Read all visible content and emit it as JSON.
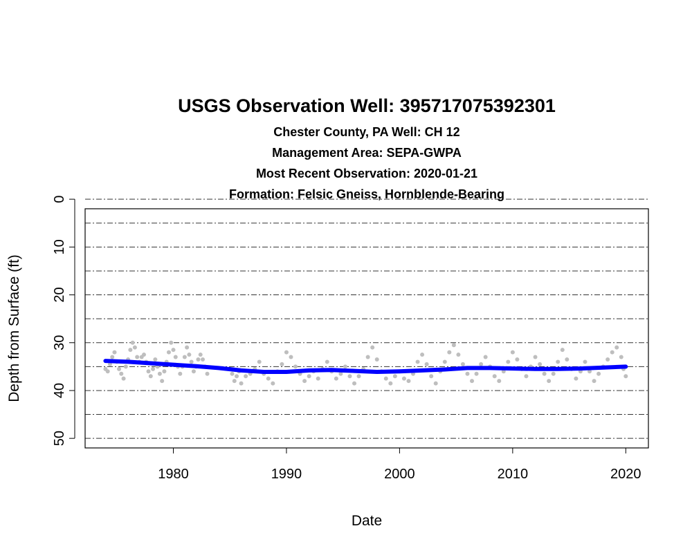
{
  "chart_data": {
    "type": "scatter",
    "title": "USGS Observation Well:  395717075392301",
    "subtitles": [
      "Chester County, PA   Well: CH 12",
      "Management Area: SEPA-GWPA",
      "Most Recent Observation: 2020-01-21",
      "Formation: Felsic Gneiss, Hornblende-Bearing"
    ],
    "xlabel": "Date",
    "ylabel": "Depth from Surface (ft)",
    "xlim": [
      1972.2,
      2022.0
    ],
    "ylim": [
      2,
      52
    ],
    "y_reversed": true,
    "x_ticks": [
      1980,
      1990,
      2000,
      2010,
      2020
    ],
    "y_ticks": [
      0,
      10,
      20,
      30,
      40,
      50
    ],
    "grid": {
      "y_lines": [
        0,
        5,
        10,
        15,
        20,
        25,
        30,
        35,
        40,
        45,
        50
      ],
      "style": "dashdot",
      "color": "#333333"
    },
    "series": [
      {
        "kind": "points",
        "color": "#bebebe",
        "points": [
          [
            1974.0,
            35.5
          ],
          [
            1974.2,
            36.0
          ],
          [
            1974.4,
            34.5
          ],
          [
            1974.6,
            33.0
          ],
          [
            1974.8,
            32.0
          ],
          [
            1975.0,
            34.0
          ],
          [
            1975.2,
            35.5
          ],
          [
            1975.4,
            36.5
          ],
          [
            1975.6,
            37.5
          ],
          [
            1975.8,
            35.0
          ],
          [
            1976.0,
            33.5
          ],
          [
            1976.2,
            31.5
          ],
          [
            1976.4,
            30.0
          ],
          [
            1976.6,
            31.0
          ],
          [
            1976.8,
            33.0
          ],
          [
            1977.0,
            34.0
          ],
          [
            1977.2,
            33.0
          ],
          [
            1977.4,
            32.5
          ],
          [
            1977.6,
            34.0
          ],
          [
            1977.8,
            36.0
          ],
          [
            1978.0,
            37.0
          ],
          [
            1978.2,
            35.5
          ],
          [
            1978.4,
            33.5
          ],
          [
            1978.6,
            35.0
          ],
          [
            1978.8,
            36.5
          ],
          [
            1979.0,
            38.0
          ],
          [
            1979.2,
            36.0
          ],
          [
            1979.4,
            34.0
          ],
          [
            1979.6,
            32.0
          ],
          [
            1979.8,
            30.0
          ],
          [
            1980.0,
            31.5
          ],
          [
            1980.2,
            33.0
          ],
          [
            1980.4,
            35.0
          ],
          [
            1980.6,
            36.5
          ],
          [
            1980.8,
            35.0
          ],
          [
            1981.0,
            33.0
          ],
          [
            1981.2,
            31.0
          ],
          [
            1981.4,
            32.5
          ],
          [
            1981.6,
            34.0
          ],
          [
            1981.8,
            36.0
          ],
          [
            1982.0,
            35.0
          ],
          [
            1982.2,
            33.5
          ],
          [
            1982.4,
            32.5
          ],
          [
            1982.6,
            33.5
          ],
          [
            1982.8,
            35.0
          ],
          [
            1983.0,
            36.5
          ],
          [
            1985.0,
            35.5
          ],
          [
            1985.2,
            36.5
          ],
          [
            1985.4,
            38.0
          ],
          [
            1985.6,
            37.0
          ],
          [
            1985.8,
            36.0
          ],
          [
            1986.0,
            38.5
          ],
          [
            1986.4,
            37.0
          ],
          [
            1986.8,
            36.5
          ],
          [
            1987.2,
            35.5
          ],
          [
            1987.6,
            34.0
          ],
          [
            1988.0,
            36.5
          ],
          [
            1988.4,
            37.5
          ],
          [
            1988.8,
            38.5
          ],
          [
            1989.2,
            36.0
          ],
          [
            1989.6,
            34.5
          ],
          [
            1990.0,
            32.0
          ],
          [
            1990.4,
            33.0
          ],
          [
            1990.8,
            35.0
          ],
          [
            1991.2,
            36.5
          ],
          [
            1991.6,
            38.0
          ],
          [
            1992.0,
            37.0
          ],
          [
            1992.4,
            36.0
          ],
          [
            1992.8,
            37.5
          ],
          [
            1993.2,
            35.5
          ],
          [
            1993.6,
            34.0
          ],
          [
            1994.0,
            36.0
          ],
          [
            1994.4,
            37.5
          ],
          [
            1994.8,
            36.5
          ],
          [
            1995.2,
            35.0
          ],
          [
            1995.6,
            37.0
          ],
          [
            1996.0,
            38.5
          ],
          [
            1996.4,
            37.0
          ],
          [
            1996.8,
            35.5
          ],
          [
            1997.2,
            33.0
          ],
          [
            1997.6,
            31.0
          ],
          [
            1998.0,
            33.5
          ],
          [
            1998.4,
            36.0
          ],
          [
            1998.8,
            37.5
          ],
          [
            1999.2,
            38.5
          ],
          [
            1999.6,
            37.0
          ],
          [
            2000.0,
            36.0
          ],
          [
            2000.4,
            37.5
          ],
          [
            2000.8,
            38.0
          ],
          [
            2001.2,
            36.5
          ],
          [
            2001.6,
            34.0
          ],
          [
            2002.0,
            32.5
          ],
          [
            2002.4,
            34.5
          ],
          [
            2002.8,
            37.0
          ],
          [
            2003.2,
            38.5
          ],
          [
            2003.6,
            36.0
          ],
          [
            2004.0,
            34.0
          ],
          [
            2004.4,
            32.0
          ],
          [
            2004.8,
            30.5
          ],
          [
            2005.2,
            32.5
          ],
          [
            2005.6,
            34.5
          ],
          [
            2006.0,
            36.5
          ],
          [
            2006.4,
            38.0
          ],
          [
            2006.8,
            36.5
          ],
          [
            2007.2,
            34.5
          ],
          [
            2007.6,
            33.0
          ],
          [
            2008.0,
            35.0
          ],
          [
            2008.4,
            37.0
          ],
          [
            2008.8,
            38.0
          ],
          [
            2009.2,
            36.0
          ],
          [
            2009.6,
            34.0
          ],
          [
            2010.0,
            32.0
          ],
          [
            2010.4,
            33.5
          ],
          [
            2010.8,
            35.5
          ],
          [
            2011.2,
            37.0
          ],
          [
            2011.6,
            35.0
          ],
          [
            2012.0,
            33.0
          ],
          [
            2012.4,
            34.5
          ],
          [
            2012.8,
            36.5
          ],
          [
            2013.2,
            38.0
          ],
          [
            2013.6,
            36.5
          ],
          [
            2014.0,
            34.0
          ],
          [
            2014.4,
            31.5
          ],
          [
            2014.8,
            33.5
          ],
          [
            2015.2,
            35.5
          ],
          [
            2015.6,
            37.5
          ],
          [
            2016.0,
            36.0
          ],
          [
            2016.4,
            34.0
          ],
          [
            2016.8,
            36.0
          ],
          [
            2017.2,
            38.0
          ],
          [
            2017.6,
            36.5
          ],
          [
            2018.0,
            35.0
          ],
          [
            2018.4,
            33.5
          ],
          [
            2018.8,
            32.0
          ],
          [
            2019.2,
            31.0
          ],
          [
            2019.6,
            33.0
          ],
          [
            2019.8,
            35.5
          ],
          [
            2020.0,
            37.0
          ]
        ]
      },
      {
        "kind": "trend",
        "color": "#0000ff",
        "points": [
          [
            1974.0,
            33.8
          ],
          [
            1976.0,
            34.0
          ],
          [
            1978.0,
            34.3
          ],
          [
            1980.0,
            34.6
          ],
          [
            1982.0,
            34.9
          ],
          [
            1984.0,
            35.3
          ],
          [
            1986.0,
            35.8
          ],
          [
            1988.0,
            36.1
          ],
          [
            1990.0,
            36.1
          ],
          [
            1992.0,
            35.8
          ],
          [
            1994.0,
            35.7
          ],
          [
            1996.0,
            35.9
          ],
          [
            1998.0,
            36.1
          ],
          [
            2000.0,
            36.0
          ],
          [
            2002.0,
            35.8
          ],
          [
            2004.0,
            35.6
          ],
          [
            2006.0,
            35.3
          ],
          [
            2008.0,
            35.3
          ],
          [
            2010.0,
            35.4
          ],
          [
            2012.0,
            35.5
          ],
          [
            2014.0,
            35.5
          ],
          [
            2016.0,
            35.4
          ],
          [
            2018.0,
            35.2
          ],
          [
            2020.0,
            35.0
          ]
        ]
      }
    ]
  }
}
